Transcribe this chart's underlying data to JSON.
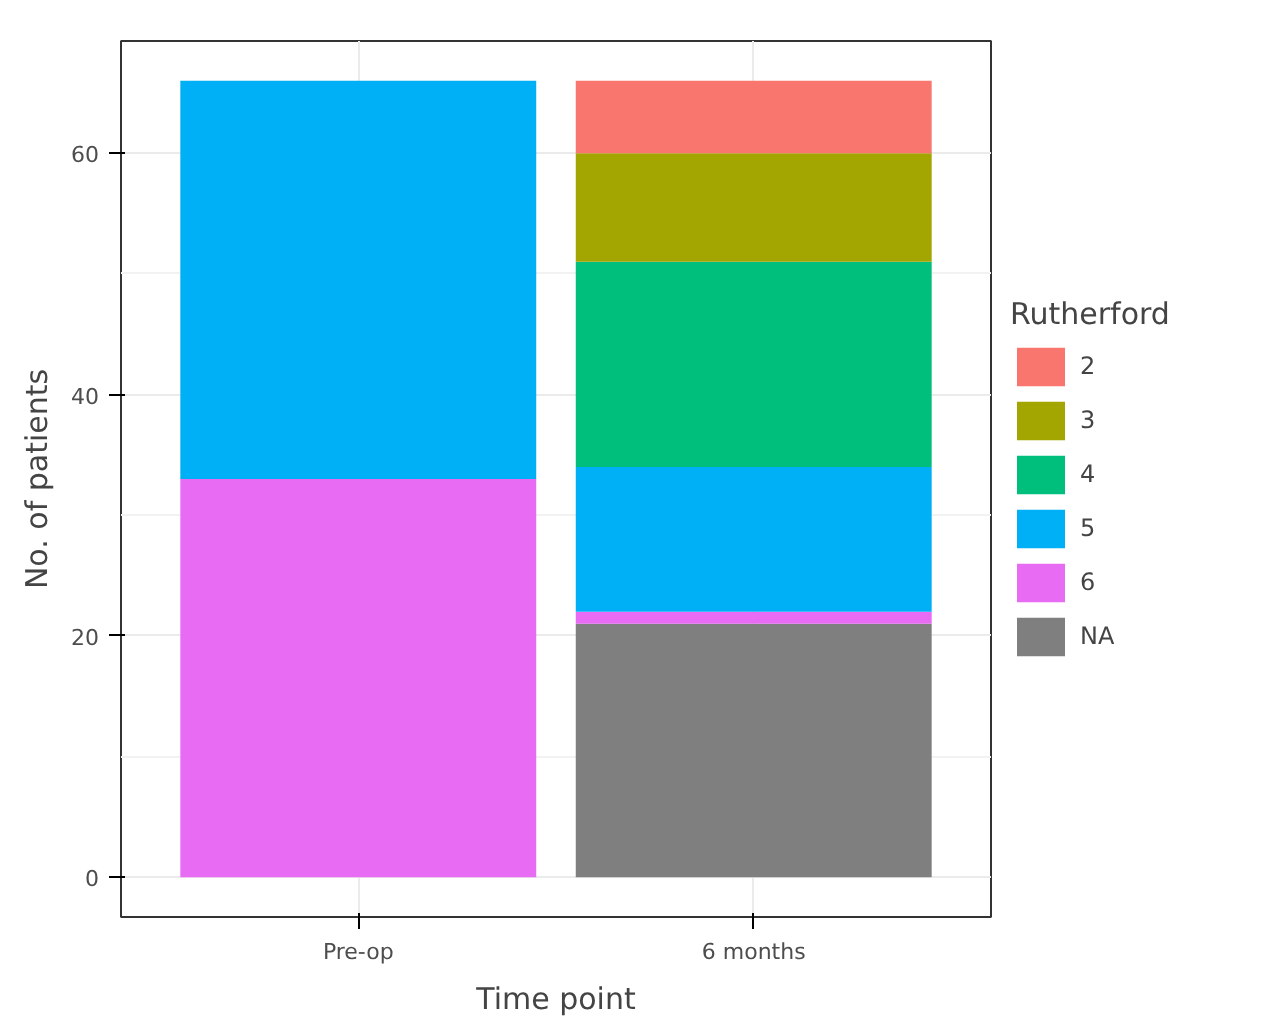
{
  "chart_data": {
    "type": "bar",
    "stacked": true,
    "xlabel": "Time point",
    "ylabel": "No. of patients",
    "legend_title": "Rutherford",
    "categories": [
      "Pre-op",
      "6 months"
    ],
    "series": [
      {
        "name": "NA",
        "color": "#7f7f7f",
        "values": [
          0,
          21
        ]
      },
      {
        "name": "6",
        "color": "#e76bf3",
        "values": [
          33,
          1
        ]
      },
      {
        "name": "5",
        "color": "#00b0f6",
        "values": [
          33,
          12
        ]
      },
      {
        "name": "4",
        "color": "#00bf7d",
        "values": [
          0,
          17
        ]
      },
      {
        "name": "3",
        "color": "#a3a500",
        "values": [
          0,
          9
        ]
      },
      {
        "name": "2",
        "color": "#f8766d",
        "values": [
          0,
          6
        ]
      }
    ],
    "ylim": [
      -3.3,
      69.3
    ],
    "yticks": [
      0,
      20,
      40,
      60
    ],
    "grid": true,
    "legend": "right"
  }
}
